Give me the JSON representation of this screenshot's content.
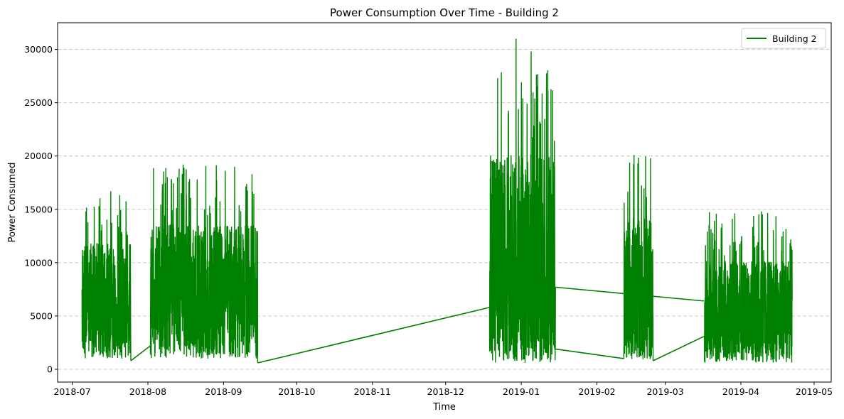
{
  "chart_data": {
    "type": "line",
    "title": "Power Consumption Over Time - Building 2",
    "xlabel": "Time",
    "ylabel": "Power Consumed",
    "x_axis": "date",
    "xlim": [
      "2018-06-25",
      "2019-05-08"
    ],
    "ylim": [
      -1200,
      32500
    ],
    "x_ticks": [
      "2018-07",
      "2018-08",
      "2018-09",
      "2018-10",
      "2018-11",
      "2018-12",
      "2019-01",
      "2019-02",
      "2019-03",
      "2019-04",
      "2019-05"
    ],
    "x_tick_dates": [
      "2018-07-01",
      "2018-08-01",
      "2018-09-01",
      "2018-10-01",
      "2018-11-01",
      "2018-12-01",
      "2019-01-01",
      "2019-02-01",
      "2019-03-01",
      "2019-04-01",
      "2019-05-01"
    ],
    "y_ticks": [
      0,
      5000,
      10000,
      15000,
      20000,
      25000,
      30000
    ],
    "grid": "y-dashed",
    "legend": {
      "position": "top-right",
      "entries": [
        "Building 2"
      ]
    },
    "series": [
      {
        "name": "Building 2",
        "color": "#008000",
        "segments": [
          {
            "start": "2018-07-05",
            "end": "2018-07-25",
            "low": 1000,
            "mid": 6000,
            "high": 16700,
            "start_value": 7500,
            "end_value": 800
          },
          {
            "start": "2018-08-02",
            "end": "2018-09-15",
            "low": 1000,
            "mid": 6800,
            "high": 19200,
            "start_value": 2200,
            "end_value": 600
          },
          {
            "start": "2018-12-19",
            "end": "2019-01-15",
            "low": 600,
            "mid": 7000,
            "high": 31000,
            "start_value": 5800,
            "end_value": 7700
          },
          {
            "start": "2019-02-12",
            "end": "2019-02-24",
            "low": 900,
            "mid": 7000,
            "high": 20100,
            "start_value": 1000,
            "end_value": 800
          },
          {
            "start": "2019-03-17",
            "end": "2019-04-22",
            "low": 600,
            "mid": 4500,
            "high": 14800,
            "start_value": 3100,
            "end_value": 6500
          }
        ],
        "connectors": [
          {
            "from_date": "2018-07-25",
            "from_value": 800,
            "to_date": "2018-08-02",
            "to_value": 2200
          },
          {
            "from_date": "2018-09-15",
            "from_value": 600,
            "to_date": "2018-12-19",
            "to_value": 5800
          },
          {
            "from_date": "2019-01-15",
            "from_value": 7700,
            "to_date": "2019-03-17",
            "to_value": 6400
          },
          {
            "from_date": "2019-01-15",
            "from_value": 1900,
            "to_date": "2019-02-12",
            "to_value": 1000
          },
          {
            "from_date": "2019-02-24",
            "from_value": 800,
            "to_date": "2019-03-17",
            "to_value": 3100
          }
        ]
      }
    ]
  }
}
